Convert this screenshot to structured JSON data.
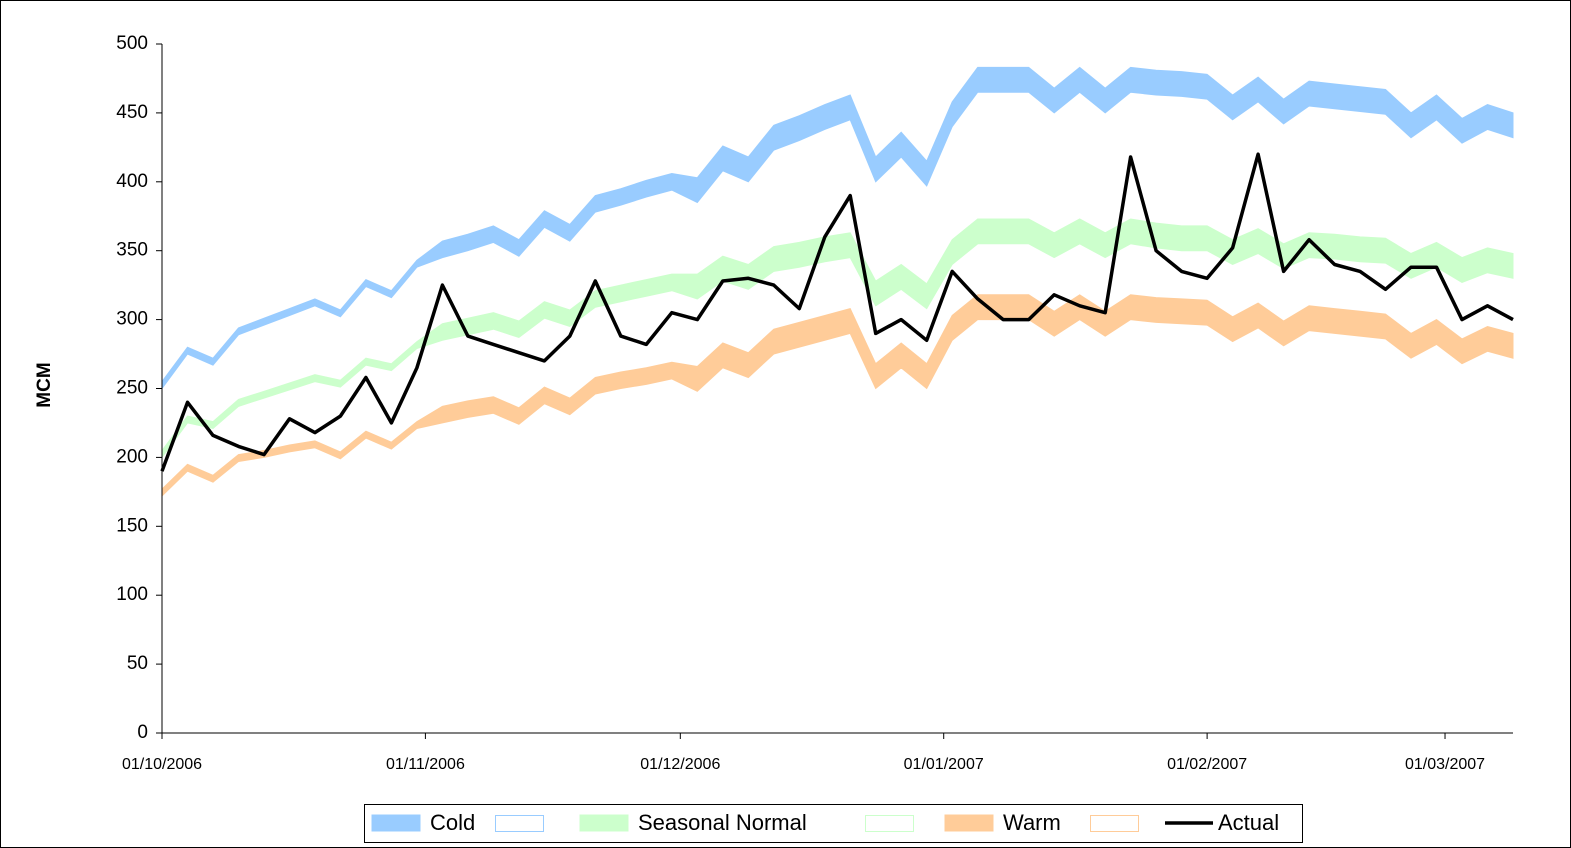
{
  "chart_data": {
    "type": "line",
    "y_label": "MCM",
    "x": [
      "01/10/2006",
      "04/10/2006",
      "07/10/2006",
      "10/10/2006",
      "13/10/2006",
      "16/10/2006",
      "19/10/2006",
      "22/10/2006",
      "25/10/2006",
      "28/10/2006",
      "31/10/2006",
      "03/11/2006",
      "06/11/2006",
      "09/11/2006",
      "12/11/2006",
      "15/11/2006",
      "18/11/2006",
      "21/11/2006",
      "24/11/2006",
      "27/11/2006",
      "30/11/2006",
      "03/12/2006",
      "06/12/2006",
      "09/12/2006",
      "12/12/2006",
      "15/12/2006",
      "18/12/2006",
      "21/12/2006",
      "24/12/2006",
      "27/12/2006",
      "30/12/2006",
      "02/01/2007",
      "05/01/2007",
      "08/01/2007",
      "11/01/2007",
      "14/01/2007",
      "17/01/2007",
      "20/01/2007",
      "23/01/2007",
      "26/01/2007",
      "29/01/2007",
      "01/02/2007",
      "04/02/2007",
      "07/02/2007",
      "10/02/2007",
      "13/02/2007",
      "16/02/2007",
      "19/02/2007",
      "22/02/2007",
      "25/02/2007",
      "28/02/2007",
      "03/03/2007",
      "06/03/2007",
      "09/03/2007"
    ],
    "xlim": [
      "01/10/2006",
      "09/03/2007"
    ],
    "xticks": [
      "01/10/2006",
      "01/11/2006",
      "01/12/2006",
      "01/01/2007",
      "01/02/2007",
      "01/03/2007"
    ],
    "ylim": [
      0,
      500
    ],
    "yticks": [
      0,
      50,
      100,
      150,
      200,
      250,
      300,
      350,
      400,
      450,
      500
    ],
    "grid": false,
    "legend": "bottom",
    "series": [
      {
        "name": "Cold",
        "color": "#99ccff",
        "low": [
          250,
          275,
          267,
          289,
          296,
          303,
          310,
          302,
          324,
          316,
          338,
          345,
          350,
          356,
          346,
          367,
          357,
          378,
          383,
          389,
          394,
          385,
          408,
          400,
          423,
          430,
          438,
          445,
          400,
          418,
          397,
          440,
          465,
          465,
          465,
          450,
          465,
          450,
          465,
          463,
          462,
          460,
          445,
          458,
          442,
          455,
          453,
          451,
          449,
          432,
          445,
          428,
          438,
          432
        ],
        "high": [
          255,
          280,
          272,
          294,
          301,
          308,
          315,
          307,
          329,
          321,
          343,
          357,
          362,
          368,
          358,
          379,
          369,
          390,
          395,
          401,
          406,
          403,
          426,
          418,
          441,
          448,
          456,
          463,
          418,
          436,
          415,
          458,
          483,
          483,
          483,
          468,
          483,
          468,
          483,
          481,
          480,
          478,
          463,
          476,
          460,
          473,
          471,
          469,
          467,
          450,
          463,
          446,
          456,
          450
        ]
      },
      {
        "name": "Seasonal Normal",
        "color": "#ccffcc",
        "low": [
          200,
          225,
          221,
          237,
          243,
          249,
          255,
          251,
          267,
          263,
          279,
          285,
          289,
          293,
          287,
          301,
          295,
          309,
          313,
          317,
          321,
          315,
          328,
          322,
          335,
          338,
          342,
          345,
          310,
          322,
          308,
          340,
          355,
          355,
          355,
          345,
          355,
          345,
          355,
          352,
          350,
          350,
          340,
          348,
          337,
          345,
          344,
          342,
          341,
          330,
          338,
          327,
          334,
          330
        ],
        "high": [
          205,
          230,
          226,
          242,
          248,
          254,
          260,
          256,
          272,
          268,
          284,
          297,
          301,
          305,
          299,
          313,
          307,
          321,
          325,
          329,
          333,
          333,
          346,
          340,
          353,
          356,
          360,
          363,
          328,
          340,
          326,
          358,
          373,
          373,
          373,
          363,
          373,
          363,
          373,
          370,
          368,
          368,
          358,
          366,
          355,
          363,
          362,
          360,
          359,
          348,
          356,
          345,
          352,
          348
        ]
      },
      {
        "name": "Warm",
        "color": "#ffcc99",
        "low": [
          172,
          190,
          182,
          197,
          200,
          204,
          207,
          199,
          214,
          206,
          221,
          225,
          229,
          232,
          224,
          239,
          231,
          246,
          250,
          253,
          257,
          248,
          265,
          258,
          275,
          280,
          285,
          290,
          250,
          265,
          250,
          285,
          300,
          300,
          300,
          288,
          300,
          288,
          300,
          298,
          297,
          296,
          284,
          294,
          281,
          292,
          290,
          288,
          286,
          272,
          282,
          268,
          277,
          272
        ],
        "high": [
          177,
          195,
          187,
          202,
          205,
          209,
          212,
          204,
          219,
          211,
          226,
          237,
          241,
          244,
          236,
          251,
          243,
          258,
          262,
          265,
          269,
          266,
          283,
          276,
          293,
          298,
          303,
          308,
          268,
          283,
          268,
          303,
          318,
          318,
          318,
          306,
          318,
          306,
          318,
          316,
          315,
          314,
          302,
          312,
          299,
          310,
          308,
          306,
          304,
          290,
          300,
          286,
          295,
          290
        ]
      },
      {
        "name": "Actual",
        "color": "#000000",
        "values": [
          190,
          240,
          216,
          208,
          202,
          228,
          218,
          230,
          258,
          225,
          265,
          325,
          288,
          282,
          276,
          270,
          288,
          328,
          288,
          282,
          305,
          300,
          328,
          330,
          325,
          308,
          360,
          390,
          290,
          300,
          285,
          335,
          315,
          300,
          300,
          318,
          310,
          305,
          418,
          350,
          335,
          330,
          352,
          420,
          335,
          358,
          340,
          335,
          322,
          338,
          338,
          300,
          310,
          300
        ]
      }
    ]
  }
}
